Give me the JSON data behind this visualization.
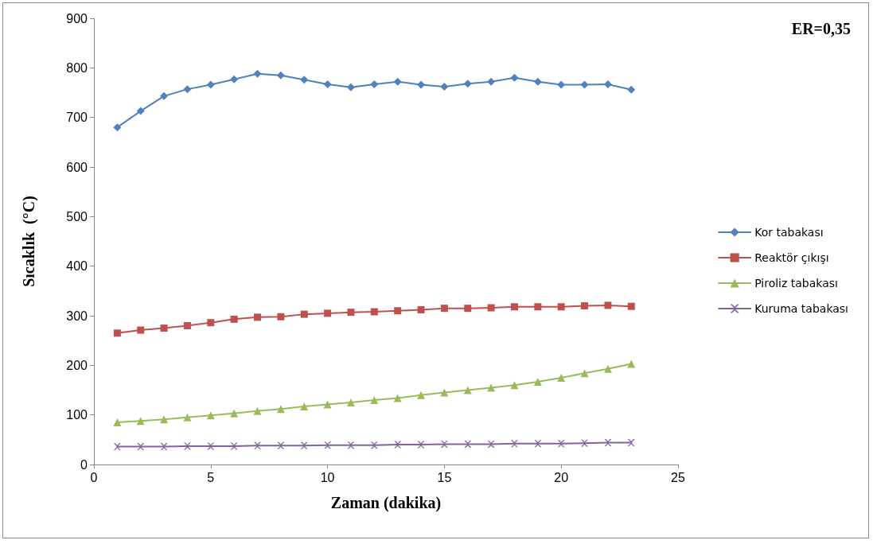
{
  "chart_data": {
    "type": "line",
    "xlabel": "Zaman (dakika)",
    "ylabel": "Sıcaklık  (°C)",
    "annotations": [
      "ER=0,35"
    ],
    "x": [
      1,
      2,
      3,
      4,
      5,
      6,
      7,
      8,
      9,
      10,
      11,
      12,
      13,
      14,
      15,
      16,
      17,
      18,
      19,
      20,
      21,
      22,
      23
    ],
    "xlim": [
      0,
      25
    ],
    "xticks": [
      0,
      5,
      10,
      15,
      20,
      25
    ],
    "ylim": [
      0,
      900
    ],
    "yticks": [
      0,
      100,
      200,
      300,
      400,
      500,
      600,
      700,
      800,
      900
    ],
    "grid": false,
    "legend": "right",
    "line_style": "solid",
    "series": [
      {
        "name": "Kor tabakası",
        "color": "#4f81bd",
        "marker": "diamond",
        "values": [
          680,
          713,
          743,
          757,
          766,
          777,
          788,
          785,
          776,
          767,
          761,
          767,
          772,
          766,
          762,
          768,
          772,
          780,
          772,
          766,
          766,
          767,
          756
        ]
      },
      {
        "name": "Reaktör çıkışı",
        "color": "#c0504d",
        "marker": "square",
        "values": [
          265,
          271,
          275,
          280,
          286,
          293,
          297,
          298,
          303,
          305,
          307,
          308,
          310,
          312,
          315,
          315,
          316,
          318,
          318,
          318,
          320,
          321,
          319
        ]
      },
      {
        "name": "Piroliz tabakası",
        "color": "#9bbb59",
        "marker": "triangle",
        "values": [
          85,
          88,
          91,
          95,
          99,
          103,
          108,
          112,
          117,
          121,
          125,
          130,
          134,
          140,
          145,
          150,
          155,
          160,
          167,
          175,
          184,
          193,
          203
        ]
      },
      {
        "name": "Kuruma tabakası",
        "color": "#8064a2",
        "marker": "cross",
        "values": [
          36,
          36,
          36,
          37,
          37,
          37,
          38,
          38,
          38,
          39,
          39,
          39,
          40,
          40,
          41,
          41,
          41,
          42,
          42,
          42,
          43,
          44,
          44
        ]
      }
    ]
  }
}
